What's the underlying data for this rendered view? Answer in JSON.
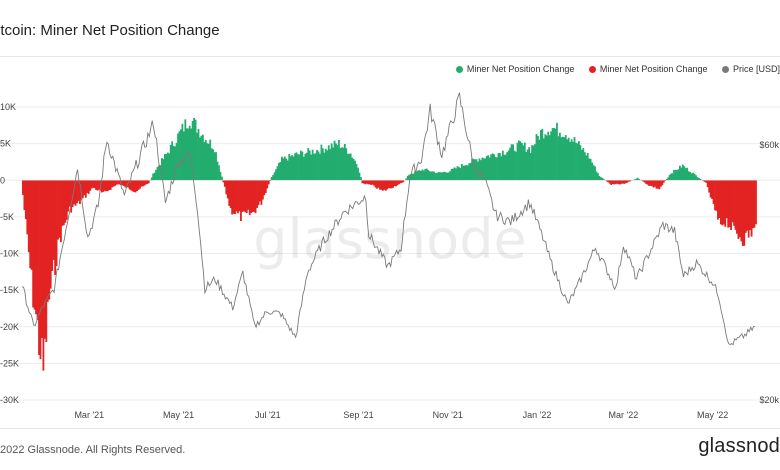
{
  "title": "itcoin: Miner Net Position Change",
  "footer": "2022 Glassnode. All Rights Reserved.",
  "brand": "glassnod",
  "watermark": "glassnode",
  "colors": {
    "positive": "#22ad6f",
    "negative": "#e32322",
    "price": "#7a7a7a"
  },
  "legend": [
    {
      "label": "Miner Net Position Change",
      "color": "#22ad6f"
    },
    {
      "label": "Miner Net Position Change",
      "color": "#e32322"
    },
    {
      "label": "Price [USD]",
      "color": "#7a7a7a"
    }
  ],
  "chart_data": {
    "type": "bar",
    "x_start": "2021-01-14",
    "x_end": "2022-06-01",
    "xticks": [
      "Mar '21",
      "May '21",
      "Jul '21",
      "Sep '21",
      "Nov '21",
      "Jan '22",
      "Mar '22",
      "May '22"
    ],
    "yticks_left": [
      "10K",
      "5K",
      "0",
      "-5K",
      "-10K",
      "-15K",
      "-20K",
      "-25K",
      "-30K"
    ],
    "ylim_left": [
      -30000,
      10000
    ],
    "yticks_right": [
      "$60k",
      "$20k"
    ],
    "ylim_right": [
      20000,
      66000
    ],
    "net_position_keypoints": [
      [
        "2021-01-14",
        -2000
      ],
      [
        "2021-01-20",
        -14000
      ],
      [
        "2021-01-25",
        -22000
      ],
      [
        "2021-01-28",
        -26000
      ],
      [
        "2021-02-01",
        -16000
      ],
      [
        "2021-02-08",
        -8000
      ],
      [
        "2021-02-15",
        -4000
      ],
      [
        "2021-02-22",
        -3000
      ],
      [
        "2021-03-03",
        -1000
      ],
      [
        "2021-03-10",
        -1800
      ],
      [
        "2021-03-20",
        -500
      ],
      [
        "2021-04-01",
        -1500
      ],
      [
        "2021-04-10",
        -400
      ],
      [
        "2021-04-14",
        1200
      ],
      [
        "2021-04-22",
        3500
      ],
      [
        "2021-04-30",
        6000
      ],
      [
        "2021-05-08",
        8500
      ],
      [
        "2021-05-14",
        7000
      ],
      [
        "2021-05-20",
        5500
      ],
      [
        "2021-05-25",
        4500
      ],
      [
        "2021-05-31",
        -300
      ],
      [
        "2021-06-05",
        -4000
      ],
      [
        "2021-06-12",
        -5000
      ],
      [
        "2021-06-20",
        -4500
      ],
      [
        "2021-06-26",
        -3000
      ],
      [
        "2021-07-03",
        400
      ],
      [
        "2021-07-10",
        2800
      ],
      [
        "2021-07-20",
        3500
      ],
      [
        "2021-08-01",
        4000
      ],
      [
        "2021-08-10",
        4500
      ],
      [
        "2021-08-18",
        5000
      ],
      [
        "2021-08-25",
        4000
      ],
      [
        "2021-08-31",
        2000
      ],
      [
        "2021-09-03",
        -400
      ],
      [
        "2021-09-10",
        -700
      ],
      [
        "2021-09-17",
        -1500
      ],
      [
        "2021-09-24",
        -900
      ],
      [
        "2021-10-01",
        -300
      ],
      [
        "2021-10-05",
        800
      ],
      [
        "2021-10-15",
        1500
      ],
      [
        "2021-10-25",
        1000
      ],
      [
        "2021-11-01",
        1200
      ],
      [
        "2021-11-10",
        2000
      ],
      [
        "2021-11-16",
        2500
      ],
      [
        "2021-11-22",
        3000
      ],
      [
        "2021-12-01",
        3500
      ],
      [
        "2021-12-10",
        4000
      ],
      [
        "2021-12-20",
        4800
      ],
      [
        "2021-12-27",
        4300
      ],
      [
        "2022-01-03",
        6500
      ],
      [
        "2022-01-10",
        7200
      ],
      [
        "2022-01-20",
        6500
      ],
      [
        "2022-01-28",
        5000
      ],
      [
        "2022-02-05",
        3200
      ],
      [
        "2022-02-12",
        600
      ],
      [
        "2022-02-20",
        -600
      ],
      [
        "2022-03-01",
        -500
      ],
      [
        "2022-03-10",
        300
      ],
      [
        "2022-03-18",
        -700
      ],
      [
        "2022-03-25",
        -1200
      ],
      [
        "2022-04-02",
        1000
      ],
      [
        "2022-04-10",
        2000
      ],
      [
        "2022-04-18",
        800
      ],
      [
        "2022-04-26",
        -400
      ],
      [
        "2022-05-05",
        -6000
      ],
      [
        "2022-05-10",
        -5500
      ],
      [
        "2022-05-15",
        -7000
      ],
      [
        "2022-05-22",
        -8000
      ],
      [
        "2022-05-30",
        -6500
      ]
    ],
    "price_keypoints": [
      [
        "2021-01-14",
        38000
      ],
      [
        "2021-01-22",
        31500
      ],
      [
        "2021-01-28",
        34500
      ],
      [
        "2021-02-05",
        37500
      ],
      [
        "2021-02-13",
        47000
      ],
      [
        "2021-02-21",
        56500
      ],
      [
        "2021-02-28",
        45500
      ],
      [
        "2021-03-07",
        50500
      ],
      [
        "2021-03-13",
        61000
      ],
      [
        "2021-03-25",
        52000
      ],
      [
        "2021-04-05",
        58500
      ],
      [
        "2021-04-14",
        63500
      ],
      [
        "2021-04-22",
        51000
      ],
      [
        "2021-05-01",
        57500
      ],
      [
        "2021-05-09",
        58500
      ],
      [
        "2021-05-14",
        50000
      ],
      [
        "2021-05-19",
        37500
      ],
      [
        "2021-05-26",
        39000
      ],
      [
        "2021-06-07",
        34500
      ],
      [
        "2021-06-14",
        40000
      ],
      [
        "2021-06-22",
        31500
      ],
      [
        "2021-07-01",
        34000
      ],
      [
        "2021-07-10",
        33500
      ],
      [
        "2021-07-20",
        29800
      ],
      [
        "2021-07-28",
        40000
      ],
      [
        "2021-08-07",
        44500
      ],
      [
        "2021-08-22",
        49500
      ],
      [
        "2021-09-06",
        52000
      ],
      [
        "2021-09-08",
        46000
      ],
      [
        "2021-09-21",
        41000
      ],
      [
        "2021-09-30",
        43800
      ],
      [
        "2021-10-06",
        55000
      ],
      [
        "2021-10-14",
        58000
      ],
      [
        "2021-10-20",
        65500
      ],
      [
        "2021-10-28",
        58500
      ],
      [
        "2021-11-09",
        67500
      ],
      [
        "2021-11-19",
        56500
      ],
      [
        "2021-11-26",
        54500
      ],
      [
        "2021-12-04",
        49000
      ],
      [
        "2021-12-14",
        48000
      ],
      [
        "2021-12-27",
        51000
      ],
      [
        "2022-01-05",
        45500
      ],
      [
        "2022-01-10",
        42000
      ],
      [
        "2022-01-22",
        35000
      ],
      [
        "2022-01-28",
        37500
      ],
      [
        "2022-02-10",
        44000
      ],
      [
        "2022-02-24",
        37500
      ],
      [
        "2022-03-01",
        44500
      ],
      [
        "2022-03-10",
        39000
      ],
      [
        "2022-03-28",
        47500
      ],
      [
        "2022-04-05",
        46500
      ],
      [
        "2022-04-11",
        39500
      ],
      [
        "2022-04-20",
        41500
      ],
      [
        "2022-05-01",
        38500
      ],
      [
        "2022-05-05",
        36500
      ],
      [
        "2022-05-10",
        31000
      ],
      [
        "2022-05-12",
        28500
      ],
      [
        "2022-05-18",
        29500
      ],
      [
        "2022-05-22",
        30000
      ],
      [
        "2022-05-30",
        31500
      ]
    ]
  }
}
